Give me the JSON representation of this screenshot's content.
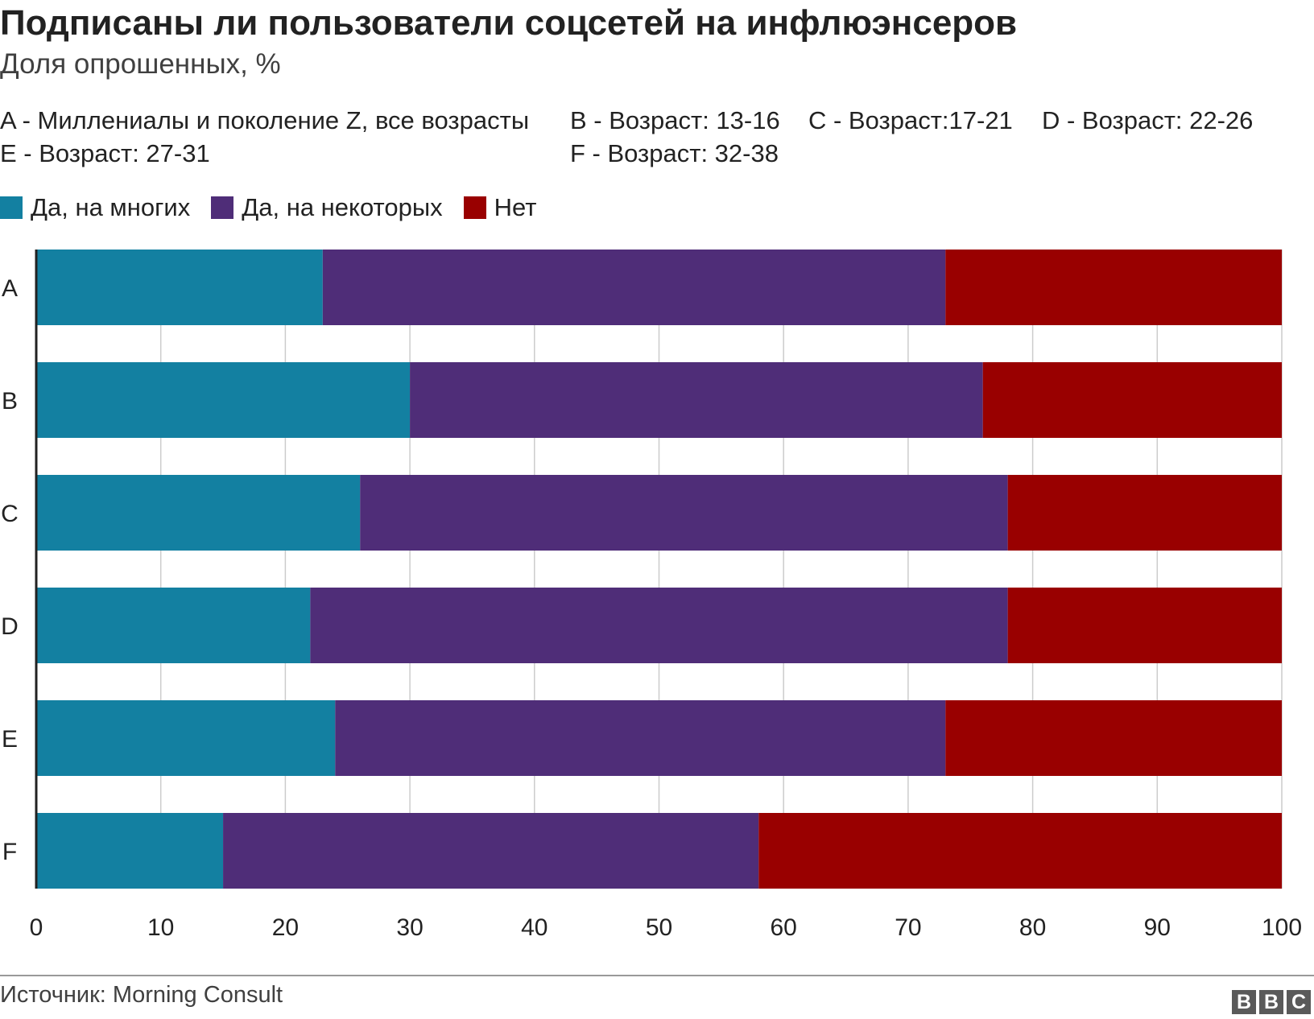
{
  "title": "Подписаны ли пользователи соцсетей на инфлюэнсеров",
  "subtitle": "Доля опрошенных, %",
  "category_key": [
    "A - Миллениалы и поколение Z, все возрасты",
    "B - Возраст: 13-16",
    "C - Возраст:17-21",
    "D - Возраст: 22-26",
    "E - Возраст: 27-31",
    "F - Возраст: 32-38"
  ],
  "legend": [
    {
      "label": "Да, на многих",
      "color": "#1380a1"
    },
    {
      "label": "Да, на некоторых",
      "color": "#4f2d78"
    },
    {
      "label": "Нет",
      "color": "#990000"
    }
  ],
  "source": "Источник: Morning Consult",
  "logo": [
    "B",
    "B",
    "C"
  ],
  "chart_data": {
    "type": "bar",
    "orientation": "horizontal",
    "stacked": true,
    "categories": [
      "A",
      "B",
      "C",
      "D",
      "E",
      "F"
    ],
    "series": [
      {
        "name": "Да, на многих",
        "color": "#1380a1",
        "values": [
          23,
          30,
          26,
          22,
          24,
          15
        ]
      },
      {
        "name": "Да, на некоторых",
        "color": "#4f2d78",
        "values": [
          50,
          46,
          52,
          56,
          49,
          43
        ]
      },
      {
        "name": "Нет",
        "color": "#990000",
        "values": [
          27,
          24,
          22,
          22,
          27,
          42
        ]
      }
    ],
    "xlim": [
      0,
      100
    ],
    "xticks": [
      0,
      10,
      20,
      30,
      40,
      50,
      60,
      70,
      80,
      90,
      100
    ],
    "grid": true
  }
}
